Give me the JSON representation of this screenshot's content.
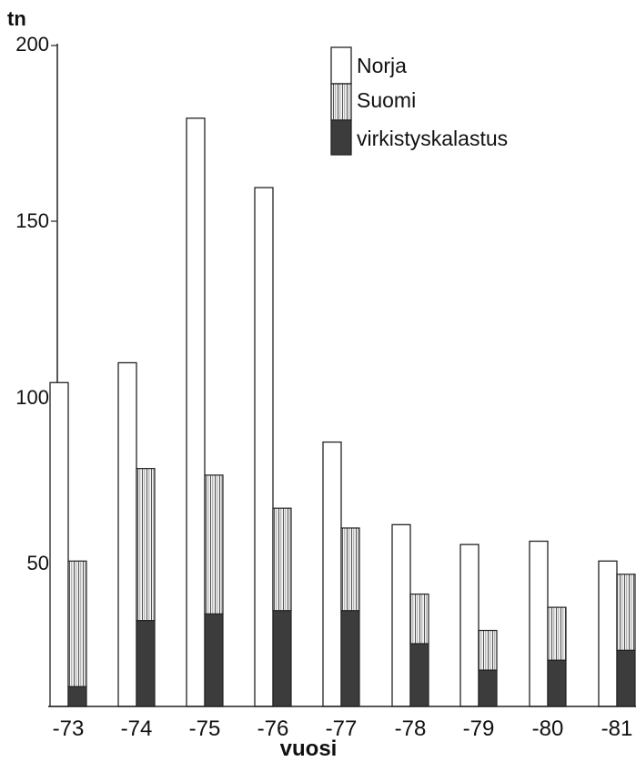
{
  "chart_data": {
    "type": "bar",
    "ylabel": "tn",
    "xlabel": "vuosi",
    "ylim": [
      0,
      200
    ],
    "yticks": [
      "200",
      "150",
      "100",
      "50"
    ],
    "categories": [
      "-73",
      "-74",
      "-75",
      "-76",
      "-77",
      "-78",
      "-79",
      "-80",
      "-81"
    ],
    "series": [
      {
        "name": "Norja",
        "values": [
          98,
          104,
          178,
          157,
          80,
          55,
          49,
          50,
          44
        ]
      },
      {
        "name": "Suomi",
        "values": [
          38,
          46,
          42,
          31,
          25,
          15,
          12,
          16,
          23
        ]
      },
      {
        "name": "virkistyskalastus",
        "values": [
          6,
          26,
          28,
          29,
          29,
          19,
          11,
          14,
          17
        ]
      }
    ],
    "legend_position": "top-center",
    "colors": {
      "Norja": "#ffffff",
      "Suomi": "#d9d9d9",
      "virkistyskalastus": "#3c3c3c"
    }
  }
}
